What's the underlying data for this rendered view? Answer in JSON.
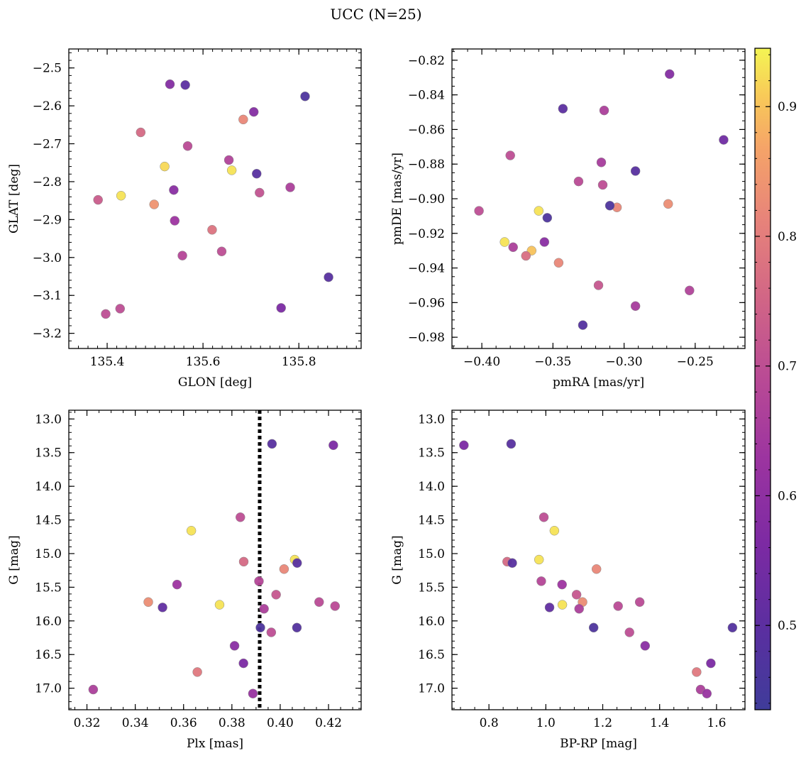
{
  "title": "UCC (N=25)",
  "colorbar": {
    "min": 0.435,
    "max": 0.945,
    "ticks": [
      0.5,
      0.6,
      0.7,
      0.8,
      0.9
    ],
    "tick_labels": [
      "0.5",
      "0.6",
      "0.7",
      "0.8",
      "0.9"
    ],
    "colormap": "plasma"
  },
  "chart_data": [
    {
      "type": "scatter",
      "name": "glon-glat",
      "xlabel": "GLON [deg]",
      "ylabel": "GLAT [deg]",
      "xlim": [
        135.32,
        135.93
      ],
      "ylim": [
        -3.24,
        -2.45
      ],
      "y_inverted": false,
      "xticks": [
        135.4,
        135.6,
        135.8
      ],
      "xtick_labels": [
        "135.4",
        "135.6",
        "135.8"
      ],
      "yticks": [
        -2.5,
        -2.6,
        -2.7,
        -2.8,
        -2.9,
        -3.0,
        -3.1,
        -3.2
      ],
      "ytick_labels": [
        "−2.5",
        "−2.6",
        "−2.7",
        "−2.8",
        "−2.9",
        "−3.0",
        "−3.1",
        "−3.2"
      ],
      "x_minor": 0.02,
      "y_minor": 0.02,
      "points": [
        {
          "x": 135.531,
          "y": -2.543,
          "c": 0.58
        },
        {
          "x": 135.563,
          "y": -2.545,
          "c": 0.5
        },
        {
          "x": 135.813,
          "y": -2.575,
          "c": 0.47
        },
        {
          "x": 135.706,
          "y": -2.616,
          "c": 0.58
        },
        {
          "x": 135.684,
          "y": -2.636,
          "c": 0.82
        },
        {
          "x": 135.47,
          "y": -2.67,
          "c": 0.76
        },
        {
          "x": 135.568,
          "y": -2.706,
          "c": 0.69
        },
        {
          "x": 135.654,
          "y": -2.743,
          "c": 0.67
        },
        {
          "x": 135.52,
          "y": -2.76,
          "c": 0.92
        },
        {
          "x": 135.66,
          "y": -2.77,
          "c": 0.93
        },
        {
          "x": 135.712,
          "y": -2.779,
          "c": 0.49
        },
        {
          "x": 135.539,
          "y": -2.822,
          "c": 0.59
        },
        {
          "x": 135.718,
          "y": -2.829,
          "c": 0.71
        },
        {
          "x": 135.782,
          "y": -2.815,
          "c": 0.66
        },
        {
          "x": 135.429,
          "y": -2.837,
          "c": 0.93
        },
        {
          "x": 135.381,
          "y": -2.848,
          "c": 0.73
        },
        {
          "x": 135.498,
          "y": -2.86,
          "c": 0.84
        },
        {
          "x": 135.541,
          "y": -2.903,
          "c": 0.63
        },
        {
          "x": 135.619,
          "y": -2.927,
          "c": 0.78
        },
        {
          "x": 135.639,
          "y": -2.984,
          "c": 0.7
        },
        {
          "x": 135.557,
          "y": -2.995,
          "c": 0.68
        },
        {
          "x": 135.862,
          "y": -3.052,
          "c": 0.49
        },
        {
          "x": 135.427,
          "y": -3.135,
          "c": 0.7
        },
        {
          "x": 135.397,
          "y": -3.149,
          "c": 0.7
        },
        {
          "x": 135.763,
          "y": -3.133,
          "c": 0.56
        }
      ]
    },
    {
      "type": "scatter",
      "name": "pm",
      "xlabel": "pmRA [mas/yr]",
      "ylabel": "pmDE [mas/yr]",
      "xlim": [
        -0.421,
        -0.215
      ],
      "ylim": [
        -0.9865,
        -0.8135
      ],
      "y_inverted": false,
      "xticks": [
        -0.4,
        -0.35,
        -0.3,
        -0.25
      ],
      "xtick_labels": [
        "−0.40",
        "−0.35",
        "−0.30",
        "−0.25"
      ],
      "yticks": [
        -0.82,
        -0.84,
        -0.86,
        -0.88,
        -0.9,
        -0.92,
        -0.94,
        -0.96,
        -0.98
      ],
      "ytick_labels": [
        "−0.82",
        "−0.84",
        "−0.86",
        "−0.88",
        "−0.90",
        "−0.92",
        "−0.94",
        "−0.96",
        "−0.98"
      ],
      "x_minor": 0.01,
      "y_minor": 0.005,
      "points": [
        {
          "x": -0.268,
          "y": -0.828,
          "c": 0.58
        },
        {
          "x": -0.343,
          "y": -0.848,
          "c": 0.5
        },
        {
          "x": -0.314,
          "y": -0.849,
          "c": 0.66
        },
        {
          "x": -0.23,
          "y": -0.866,
          "c": 0.54
        },
        {
          "x": -0.38,
          "y": -0.875,
          "c": 0.7
        },
        {
          "x": -0.316,
          "y": -0.879,
          "c": 0.65
        },
        {
          "x": -0.292,
          "y": -0.884,
          "c": 0.49
        },
        {
          "x": -0.332,
          "y": -0.89,
          "c": 0.69
        },
        {
          "x": -0.315,
          "y": -0.892,
          "c": 0.7
        },
        {
          "x": -0.269,
          "y": -0.903,
          "c": 0.83
        },
        {
          "x": -0.305,
          "y": -0.905,
          "c": 0.82
        },
        {
          "x": -0.31,
          "y": -0.904,
          "c": 0.47
        },
        {
          "x": -0.402,
          "y": -0.907,
          "c": 0.7
        },
        {
          "x": -0.36,
          "y": -0.907,
          "c": 0.93
        },
        {
          "x": -0.354,
          "y": -0.911,
          "c": 0.47
        },
        {
          "x": -0.384,
          "y": -0.925,
          "c": 0.93
        },
        {
          "x": -0.356,
          "y": -0.925,
          "c": 0.59
        },
        {
          "x": -0.378,
          "y": -0.928,
          "c": 0.66
        },
        {
          "x": -0.365,
          "y": -0.93,
          "c": 0.9
        },
        {
          "x": -0.369,
          "y": -0.933,
          "c": 0.77
        },
        {
          "x": -0.346,
          "y": -0.937,
          "c": 0.82
        },
        {
          "x": -0.318,
          "y": -0.95,
          "c": 0.72
        },
        {
          "x": -0.254,
          "y": -0.953,
          "c": 0.67
        },
        {
          "x": -0.292,
          "y": -0.962,
          "c": 0.65
        },
        {
          "x": -0.329,
          "y": -0.973,
          "c": 0.48
        }
      ]
    },
    {
      "type": "scatter",
      "name": "plx-g",
      "xlabel": "Plx [mas]",
      "ylabel": "G [mag]",
      "xlim": [
        0.3125,
        0.4335
      ],
      "ylim": [
        12.87,
        17.32
      ],
      "y_inverted": true,
      "xticks": [
        0.32,
        0.34,
        0.36,
        0.38,
        0.4,
        0.42
      ],
      "xtick_labels": [
        "0.32",
        "0.34",
        "0.36",
        "0.38",
        "0.40",
        "0.42"
      ],
      "yticks": [
        13.0,
        13.5,
        14.0,
        14.5,
        15.0,
        15.5,
        16.0,
        16.5,
        17.0
      ],
      "ytick_labels": [
        "13.0",
        "13.5",
        "14.0",
        "14.5",
        "15.0",
        "15.5",
        "16.0",
        "16.5",
        "17.0"
      ],
      "x_minor": 0.005,
      "y_minor": 0.1,
      "vline": {
        "x": 0.3915,
        "style": "dotted"
      },
      "points": [
        {
          "x": 0.3966,
          "y": 13.37,
          "c": 0.49
        },
        {
          "x": 0.422,
          "y": 13.39,
          "c": 0.56
        },
        {
          "x": 0.3835,
          "y": 14.46,
          "c": 0.7
        },
        {
          "x": 0.3632,
          "y": 14.66,
          "c": 0.93
        },
        {
          "x": 0.406,
          "y": 15.09,
          "c": 0.93
        },
        {
          "x": 0.3849,
          "y": 15.12,
          "c": 0.76
        },
        {
          "x": 0.407,
          "y": 15.14,
          "c": 0.49
        },
        {
          "x": 0.4016,
          "y": 15.23,
          "c": 0.82
        },
        {
          "x": 0.3912,
          "y": 15.41,
          "c": 0.68
        },
        {
          "x": 0.3573,
          "y": 15.46,
          "c": 0.63
        },
        {
          "x": 0.3983,
          "y": 15.61,
          "c": 0.72
        },
        {
          "x": 0.4161,
          "y": 15.72,
          "c": 0.69
        },
        {
          "x": 0.3454,
          "y": 15.72,
          "c": 0.83
        },
        {
          "x": 0.3749,
          "y": 15.76,
          "c": 0.93
        },
        {
          "x": 0.4227,
          "y": 15.78,
          "c": 0.69
        },
        {
          "x": 0.3513,
          "y": 15.8,
          "c": 0.51
        },
        {
          "x": 0.3933,
          "y": 15.82,
          "c": 0.66
        },
        {
          "x": 0.3918,
          "y": 16.1,
          "c": 0.47
        },
        {
          "x": 0.4069,
          "y": 16.1,
          "c": 0.48
        },
        {
          "x": 0.3963,
          "y": 16.17,
          "c": 0.7
        },
        {
          "x": 0.3811,
          "y": 16.37,
          "c": 0.59
        },
        {
          "x": 0.3848,
          "y": 16.63,
          "c": 0.56
        },
        {
          "x": 0.3657,
          "y": 16.76,
          "c": 0.79
        },
        {
          "x": 0.3226,
          "y": 17.02,
          "c": 0.66
        },
        {
          "x": 0.3887,
          "y": 17.08,
          "c": 0.62
        }
      ]
    },
    {
      "type": "scatter",
      "name": "cmd",
      "xlabel": "BP-RP [mag]",
      "ylabel": "G [mag]",
      "xlim": [
        0.67,
        1.7
      ],
      "ylim": [
        12.87,
        17.32
      ],
      "y_inverted": true,
      "xticks": [
        0.8,
        1.0,
        1.2,
        1.4,
        1.6
      ],
      "xtick_labels": [
        "0.8",
        "1.0",
        "1.2",
        "1.4",
        "1.6"
      ],
      "yticks": [
        13.0,
        13.5,
        14.0,
        14.5,
        15.0,
        15.5,
        16.0,
        16.5,
        17.0
      ],
      "ytick_labels": [
        "13.0",
        "13.5",
        "14.0",
        "14.5",
        "15.0",
        "15.5",
        "16.0",
        "16.5",
        "17.0"
      ],
      "x_minor": 0.05,
      "y_minor": 0.1,
      "points": [
        {
          "x": 0.712,
          "y": 13.39,
          "c": 0.56
        },
        {
          "x": 0.878,
          "y": 13.37,
          "c": 0.49
        },
        {
          "x": 0.993,
          "y": 14.46,
          "c": 0.7
        },
        {
          "x": 1.03,
          "y": 14.66,
          "c": 0.93
        },
        {
          "x": 0.976,
          "y": 15.09,
          "c": 0.93
        },
        {
          "x": 0.864,
          "y": 15.12,
          "c": 0.76
        },
        {
          "x": 0.882,
          "y": 15.14,
          "c": 0.49
        },
        {
          "x": 1.178,
          "y": 15.23,
          "c": 0.82
        },
        {
          "x": 0.984,
          "y": 15.41,
          "c": 0.68
        },
        {
          "x": 1.057,
          "y": 15.46,
          "c": 0.63
        },
        {
          "x": 1.108,
          "y": 15.61,
          "c": 0.72
        },
        {
          "x": 1.33,
          "y": 15.72,
          "c": 0.69
        },
        {
          "x": 1.129,
          "y": 15.72,
          "c": 0.83
        },
        {
          "x": 1.058,
          "y": 15.76,
          "c": 0.93
        },
        {
          "x": 1.254,
          "y": 15.78,
          "c": 0.69
        },
        {
          "x": 1.013,
          "y": 15.8,
          "c": 0.51
        },
        {
          "x": 1.117,
          "y": 15.82,
          "c": 0.66
        },
        {
          "x": 1.168,
          "y": 16.1,
          "c": 0.47
        },
        {
          "x": 1.656,
          "y": 16.1,
          "c": 0.48
        },
        {
          "x": 1.294,
          "y": 16.17,
          "c": 0.7
        },
        {
          "x": 1.349,
          "y": 16.37,
          "c": 0.59
        },
        {
          "x": 1.58,
          "y": 16.63,
          "c": 0.56
        },
        {
          "x": 1.53,
          "y": 16.76,
          "c": 0.79
        },
        {
          "x": 1.544,
          "y": 17.02,
          "c": 0.66
        },
        {
          "x": 1.566,
          "y": 17.08,
          "c": 0.62
        }
      ]
    }
  ]
}
